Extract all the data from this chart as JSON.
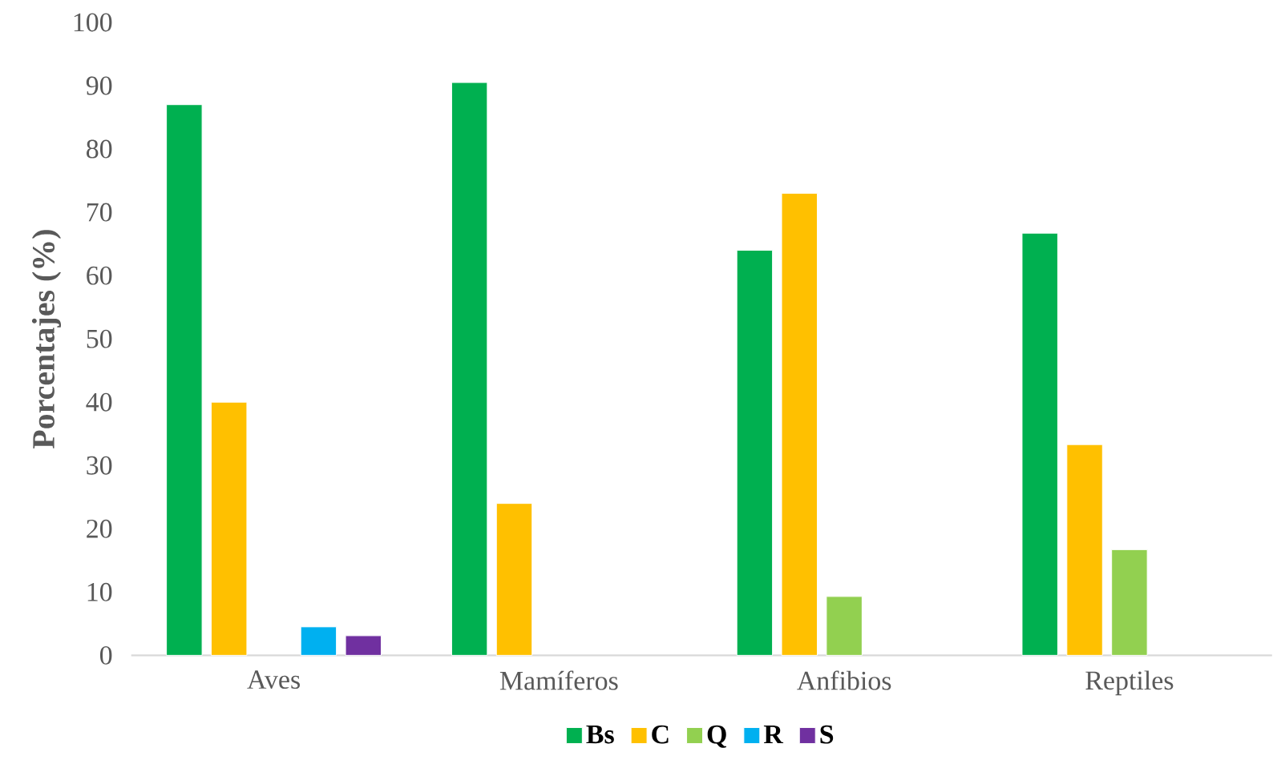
{
  "chart_data": {
    "type": "bar",
    "ylabel": "Porcentajes (%)",
    "categories": [
      "Aves",
      "Mamíferos",
      "Anfibios",
      "Reptiles"
    ],
    "series": [
      {
        "name": "Bs",
        "color": "#00b050",
        "values": [
          87,
          90.5,
          64,
          66.7
        ]
      },
      {
        "name": "C",
        "color": "#ffc000",
        "values": [
          40,
          24,
          73,
          33.3
        ]
      },
      {
        "name": "Q",
        "color": "#92d050",
        "values": [
          null,
          null,
          9.3,
          16.7
        ]
      },
      {
        "name": "R",
        "color": "#00b0f0",
        "values": [
          4.5,
          null,
          null,
          null
        ]
      },
      {
        "name": "S",
        "color": "#7030a0",
        "values": [
          3.1,
          null,
          null,
          null
        ]
      }
    ],
    "ylim": [
      0,
      100
    ],
    "yticks": [
      0,
      10,
      20,
      30,
      40,
      50,
      60,
      70,
      80,
      90,
      100
    ],
    "legend": "bottom"
  }
}
